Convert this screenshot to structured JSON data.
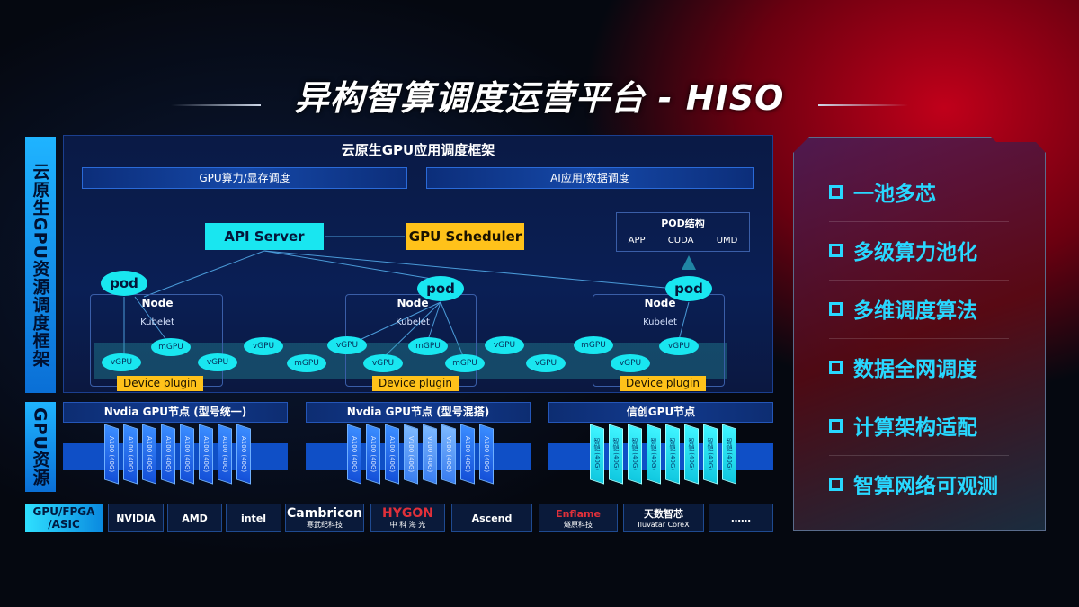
{
  "title": "异构智算调度运营平台 - HISO",
  "left_labels": {
    "framework": "云原生GPU资源调度框架",
    "resources": "GPU资源",
    "chips": "GPU/FPGA /ASIC"
  },
  "framework": {
    "header": "云原生GPU应用调度框架",
    "bars": [
      "GPU算力/显存调度",
      "AI应用/数据调度"
    ],
    "api_server": "API Server",
    "gpu_scheduler": "GPU Scheduler",
    "pod_structure": {
      "title": "POD结构",
      "items": [
        "APP",
        "CUDA",
        "UMD"
      ]
    },
    "nodes": [
      {
        "label": "Node",
        "kubelet": "Kubelet",
        "pod": "pod",
        "device_plugin": "Device plugin"
      },
      {
        "label": "Node",
        "kubelet": "Kubelet",
        "pod": "pod",
        "device_plugin": "Device plugin"
      },
      {
        "label": "Node",
        "kubelet": "Kubelet",
        "pod": "pod",
        "device_plugin": "Device plugin"
      }
    ],
    "gpu_units": [
      "vGPU",
      "mGPU",
      "vGPU",
      "vGPU",
      "mGPU",
      "vGPU",
      "vGPU",
      "mGPU",
      "mGPU",
      "vGPU",
      "vGPU",
      "mGPU",
      "vGPU",
      "vGPU"
    ]
  },
  "gpu_nodes": [
    {
      "title": "Nvdia GPU节点 (型号统一)",
      "chips": [
        "A100 (40G)",
        "A100 (40G)",
        "A100 (40G)",
        "A100 (40G)",
        "A100 (40G)",
        "A100 (40G)",
        "A100 (40G)",
        "A100 (40G)"
      ],
      "style": "blue"
    },
    {
      "title": "Nvdia GPU节点 (型号混搭)",
      "chips": [
        "A100 (40G)",
        "A100 (40G)",
        "A100 (40G)",
        "V100 (40G)",
        "V100 (40G)",
        "V100 (40G)",
        "A100 (40G)",
        "A100 (40G)"
      ],
      "style": "mixed"
    },
    {
      "title": "信创GPU节点",
      "chips": [
        "智铠 (40G)",
        "智铠 (40G)",
        "智铠 (40G)",
        "智铠 (40G)",
        "智铠 (40G)",
        "智铠 (40G)",
        "智铠 (40G)",
        "智铠 (40G)"
      ],
      "style": "cyan"
    }
  ],
  "vendors": [
    {
      "name": "NVIDIA",
      "sub": "",
      "color": "#ffffff"
    },
    {
      "name": "AMD",
      "sub": "",
      "color": "#ffffff"
    },
    {
      "name": "intel",
      "sub": "",
      "color": "#ffffff"
    },
    {
      "name": "Cambricon",
      "sub": "寒武纪科技",
      "color": "#ffffff"
    },
    {
      "name": "HYGON",
      "sub": "中 科 海 光",
      "color": "#e0303a"
    },
    {
      "name": "Ascend",
      "sub": "",
      "color": "#ffffff"
    },
    {
      "name": "Enflame",
      "sub": "燧原科技",
      "color": "#e0303a"
    },
    {
      "name": "天数智芯",
      "sub": "Iluvatar CoreX",
      "color": "#ffffff"
    },
    {
      "name": "……",
      "sub": "",
      "color": "#ffffff"
    }
  ],
  "features": [
    "一池多芯",
    "多级算力池化",
    "多维调度算法",
    "数据全网调度",
    "计算架构适配",
    "智算网络可观测"
  ],
  "colors": {
    "accent_cyan": "#19e6f0",
    "accent_orange": "#ffc21a",
    "feature_text": "#28d8ff",
    "background_red": "#c0001a"
  }
}
